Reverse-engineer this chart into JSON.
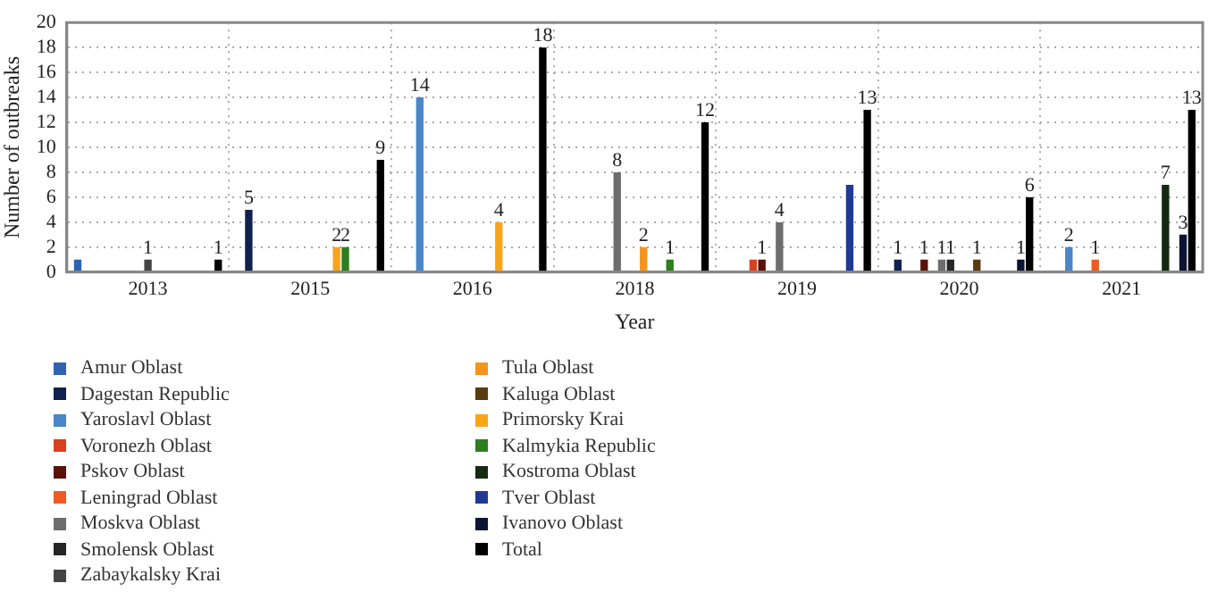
{
  "chart_data": {
    "type": "bar",
    "xlabel": "Year",
    "ylabel": "Number of outbreaks",
    "categories": [
      "2013",
      "2015",
      "2016",
      "2018",
      "2019",
      "2020",
      "2021"
    ],
    "ylim": [
      0,
      20
    ],
    "yticks": [
      0,
      2,
      4,
      6,
      8,
      10,
      12,
      14,
      16,
      18,
      20
    ],
    "grid": true,
    "legend": "bottom",
    "series": [
      {
        "name": "Amur Oblast",
        "color": "#2f62b3",
        "values": [
          1,
          0,
          0,
          0,
          0,
          0,
          0
        ],
        "value_labels": [
          null,
          null,
          null,
          null,
          null,
          null,
          null
        ]
      },
      {
        "name": "Dagestan Republic",
        "color": "#10214f",
        "values": [
          0,
          5,
          0,
          0,
          0,
          1,
          0
        ],
        "value_labels": [
          null,
          "5",
          null,
          null,
          null,
          "1",
          null
        ]
      },
      {
        "name": "Yaroslavl Oblast",
        "color": "#4a86c8",
        "values": [
          0,
          0,
          14,
          0,
          0,
          0,
          2
        ],
        "value_labels": [
          null,
          null,
          "14",
          null,
          null,
          null,
          "2"
        ]
      },
      {
        "name": "Voronezh Oblast",
        "color": "#d9401f",
        "values": [
          0,
          0,
          0,
          0,
          1,
          0,
          0
        ],
        "value_labels": [
          null,
          null,
          null,
          null,
          null,
          null,
          null
        ]
      },
      {
        "name": "Pskov Oblast",
        "color": "#5a1208",
        "values": [
          0,
          0,
          0,
          0,
          1,
          1,
          0
        ],
        "value_labels": [
          null,
          null,
          null,
          null,
          "1",
          "1",
          null
        ]
      },
      {
        "name": "Leningrad Oblast",
        "color": "#ee5a24",
        "values": [
          0,
          0,
          0,
          0,
          0,
          0,
          1
        ],
        "value_labels": [
          null,
          null,
          null,
          null,
          null,
          null,
          "1"
        ]
      },
      {
        "name": "Moskva Oblast",
        "color": "#6d6d6d",
        "values": [
          0,
          0,
          0,
          8,
          4,
          1,
          0
        ],
        "value_labels": [
          null,
          null,
          null,
          "8",
          "4",
          "1",
          null
        ]
      },
      {
        "name": "Smolensk Oblast",
        "color": "#262626",
        "values": [
          0,
          0,
          0,
          0,
          0,
          1,
          0
        ],
        "value_labels": [
          null,
          null,
          null,
          null,
          null,
          "1",
          null
        ]
      },
      {
        "name": "Zabaykalsky Krai",
        "color": "#444444",
        "values": [
          1,
          0,
          0,
          0,
          0,
          0,
          0
        ],
        "value_labels": [
          "1",
          null,
          null,
          null,
          null,
          null,
          null
        ]
      },
      {
        "name": "Tula Oblast",
        "color": "#f7941d",
        "values": [
          0,
          0,
          0,
          2,
          0,
          0,
          0
        ],
        "value_labels": [
          null,
          null,
          null,
          "2",
          null,
          null,
          null
        ]
      },
      {
        "name": "Kaluga Oblast",
        "color": "#5a3a10",
        "values": [
          0,
          0,
          0,
          0,
          0,
          1,
          0
        ],
        "value_labels": [
          null,
          null,
          null,
          null,
          null,
          "1",
          null
        ]
      },
      {
        "name": "Primorsky Krai",
        "color": "#f9a51a",
        "values": [
          0,
          2,
          4,
          0,
          0,
          0,
          0
        ],
        "value_labels": [
          null,
          "2",
          "4",
          null,
          null,
          null,
          null
        ]
      },
      {
        "name": "Kalmykia Republic",
        "color": "#2e7d20",
        "values": [
          0,
          2,
          0,
          1,
          0,
          0,
          0
        ],
        "value_labels": [
          null,
          "2",
          null,
          "1",
          null,
          null,
          null
        ]
      },
      {
        "name": "Kostroma Oblast",
        "color": "#142a10",
        "values": [
          0,
          0,
          0,
          0,
          0,
          0,
          7
        ],
        "value_labels": [
          null,
          null,
          null,
          null,
          null,
          null,
          "7"
        ]
      },
      {
        "name": "Tver Oblast",
        "color": "#1f3a93",
        "values": [
          0,
          0,
          0,
          0,
          7,
          0,
          0
        ],
        "value_labels": [
          null,
          null,
          null,
          null,
          null,
          null,
          null
        ]
      },
      {
        "name": "Ivanovo Oblast",
        "color": "#0b1433",
        "values": [
          0,
          0,
          0,
          0,
          0,
          1,
          3
        ],
        "value_labels": [
          null,
          null,
          null,
          null,
          null,
          "1",
          "3"
        ]
      },
      {
        "name": "Total",
        "color": "#000000",
        "values": [
          1,
          9,
          18,
          12,
          13,
          6,
          13
        ],
        "value_labels": [
          "1",
          "9",
          "18",
          "12",
          "13",
          "6",
          "13"
        ]
      }
    ]
  }
}
